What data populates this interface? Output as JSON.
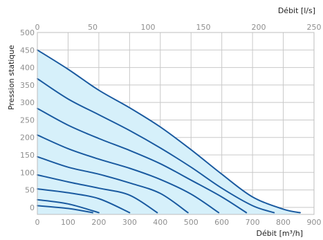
{
  "chart_data": {
    "type": "line",
    "title": "",
    "xlabel": "Débit [m³/h]",
    "x2label": "Débit [l/s]",
    "ylabel": "Pression statique",
    "xlim": [
      0,
      900
    ],
    "x2lim": [
      0,
      250
    ],
    "ylim": [
      -20,
      500
    ],
    "x_ticks": [
      0,
      100,
      200,
      300,
      400,
      500,
      600,
      700,
      800,
      900
    ],
    "x2_ticks": [
      0,
      50,
      100,
      150,
      200,
      250
    ],
    "y_ticks": [
      0,
      50,
      100,
      150,
      200,
      250,
      300,
      350,
      400,
      450,
      500
    ],
    "grid": true,
    "legend": "none",
    "line_color": "#1a5aa0",
    "fill_color": "#d6f0fa",
    "series": [
      {
        "x": [
          0,
          100,
          200,
          300,
          400,
          500,
          600,
          700,
          800,
          855
        ],
        "y": [
          450,
          395,
          335,
          285,
          230,
          165,
          95,
          30,
          -5,
          -15
        ]
      },
      {
        "x": [
          0,
          100,
          200,
          300,
          400,
          500,
          600,
          700,
          770
        ],
        "y": [
          368,
          310,
          265,
          220,
          170,
          115,
          55,
          5,
          -15
        ]
      },
      {
        "x": [
          0,
          100,
          200,
          300,
          400,
          500,
          600,
          680
        ],
        "y": [
          283,
          235,
          197,
          163,
          125,
          78,
          30,
          -15
        ]
      },
      {
        "x": [
          0,
          100,
          200,
          300,
          400,
          500,
          590
        ],
        "y": [
          207,
          168,
          138,
          112,
          80,
          38,
          -15
        ]
      },
      {
        "x": [
          0,
          100,
          200,
          300,
          400,
          490
        ],
        "y": [
          145,
          115,
          95,
          70,
          40,
          -15
        ]
      },
      {
        "x": [
          0,
          100,
          200,
          300,
          390
        ],
        "y": [
          93,
          73,
          55,
          35,
          -15
        ]
      },
      {
        "x": [
          0,
          100,
          200,
          300
        ],
        "y": [
          53,
          42,
          25,
          -15
        ]
      },
      {
        "x": [
          0,
          100,
          200
        ],
        "y": [
          22,
          10,
          -15
        ]
      },
      {
        "x": [
          0,
          100,
          180
        ],
        "y": [
          5,
          -3,
          -15
        ]
      }
    ]
  }
}
